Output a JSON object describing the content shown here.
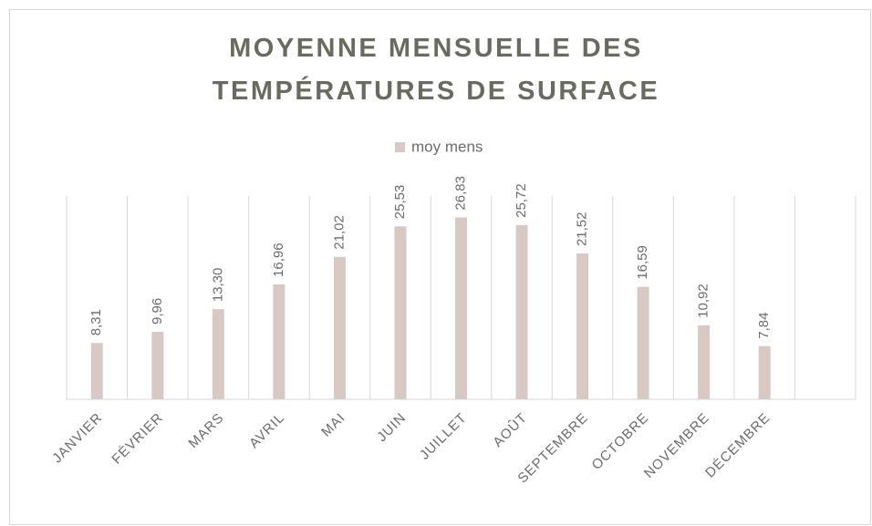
{
  "chart_data": {
    "type": "bar",
    "title": "MOYENNE MENSUELLE DES TEMPÉRATURES DE SURFACE",
    "categories": [
      "JANVIER",
      "FÉVRIER",
      "MARS",
      "AVRIL",
      "MAI",
      "JUIN",
      "JUILLET",
      "AOÛT",
      "SEPTEMBRE",
      "OCTOBRE",
      "NOVEMBRE",
      "DÉCEMBRE",
      null
    ],
    "series": [
      {
        "name": "moy mens",
        "color": "#d9c9c5",
        "values": [
          8.31,
          9.96,
          13.3,
          16.96,
          21.02,
          25.53,
          26.83,
          25.72,
          21.52,
          16.59,
          10.92,
          7.84,
          null
        ],
        "value_labels": [
          "8,31",
          "9,96",
          "13,30",
          "16,96",
          "21,02",
          "25,53",
          "26,83",
          "25,72",
          "21,52",
          "16,59",
          "10,92",
          "7,84",
          null
        ]
      }
    ],
    "ylim": [
      0,
      30
    ],
    "grid": true,
    "legend": "top"
  }
}
